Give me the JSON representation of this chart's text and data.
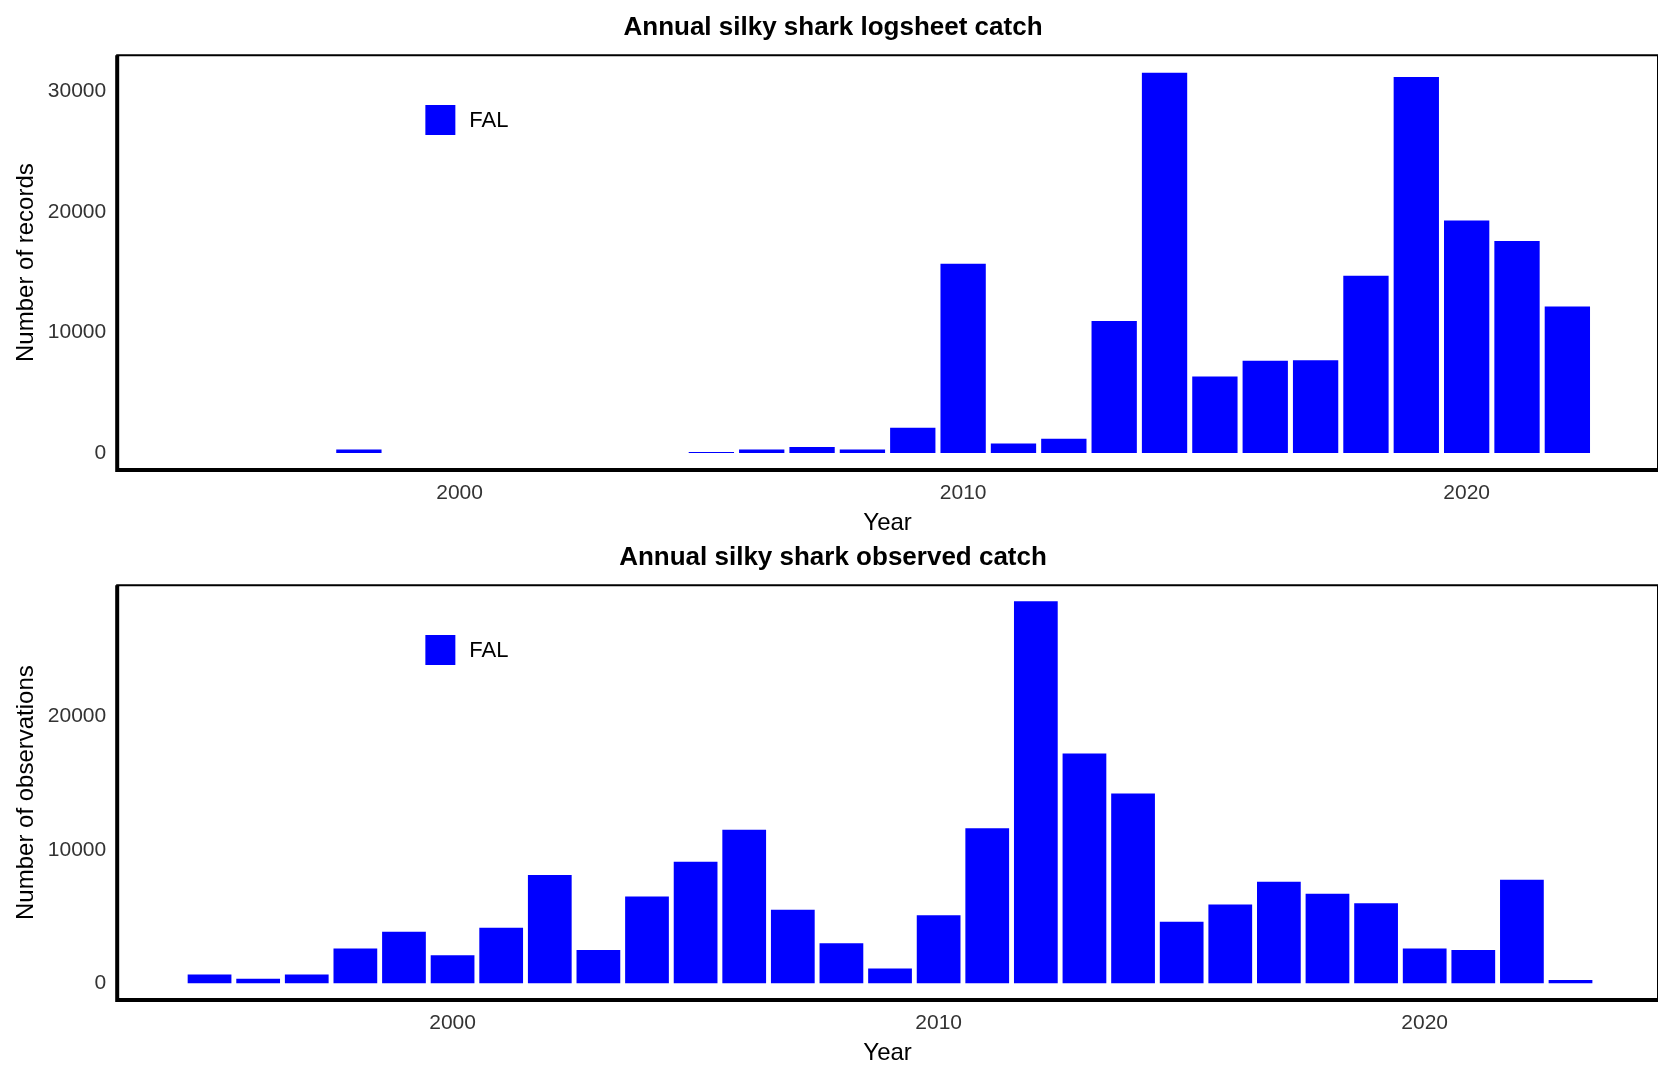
{
  "chart_data": [
    {
      "type": "bar",
      "title": "Annual silky shark logsheet catch",
      "xlabel": "Year",
      "ylabel": "Number of records",
      "x": [
        1998,
        2005,
        2006,
        2007,
        2008,
        2009,
        2010,
        2011,
        2012,
        2013,
        2014,
        2015,
        2016,
        2017,
        2018,
        2019,
        2020,
        2021,
        2022
      ],
      "series": [
        {
          "name": "FAL",
          "color": "#0000ff",
          "values": [
            300,
            100,
            300,
            500,
            300,
            2100,
            15700,
            800,
            1200,
            10950,
            31550,
            6350,
            7650,
            7700,
            14700,
            31200,
            19300,
            17600,
            12150
          ]
        }
      ],
      "xlim": [
        1993.2,
        2023.8
      ],
      "xticks": [
        2000,
        2010,
        2020
      ],
      "ylim": [
        -1400,
        33000
      ],
      "yticks": [
        0,
        10000,
        20000,
        30000
      ],
      "legend": "top left",
      "grid": false
    },
    {
      "type": "bar",
      "title": "Annual silky shark observed catch",
      "xlabel": "Year",
      "ylabel": "Number of observations",
      "x": [
        1995,
        1996,
        1997,
        1998,
        1999,
        2000,
        2001,
        2002,
        2003,
        2004,
        2005,
        2006,
        2007,
        2008,
        2009,
        2010,
        2011,
        2012,
        2013,
        2014,
        2015,
        2016,
        2017,
        2018,
        2019,
        2020,
        2021,
        2022,
        2023
      ],
      "series": [
        {
          "name": "FAL",
          "color": "#0000ff",
          "values": [
            650,
            350,
            650,
            2600,
            3850,
            2100,
            4150,
            8100,
            2500,
            6500,
            9100,
            11500,
            5500,
            3000,
            1100,
            5100,
            11600,
            28600,
            17200,
            14200,
            4600,
            5900,
            7600,
            6700,
            6000,
            2600,
            2500,
            7750,
            250
          ]
        }
      ],
      "xlim": [
        1993.1,
        2024.8
      ],
      "xticks": [
        2000,
        2010,
        2020
      ],
      "ylim": [
        -1250,
        29800
      ],
      "yticks": [
        0,
        10000,
        20000
      ],
      "legend": "top left",
      "grid": false
    }
  ]
}
